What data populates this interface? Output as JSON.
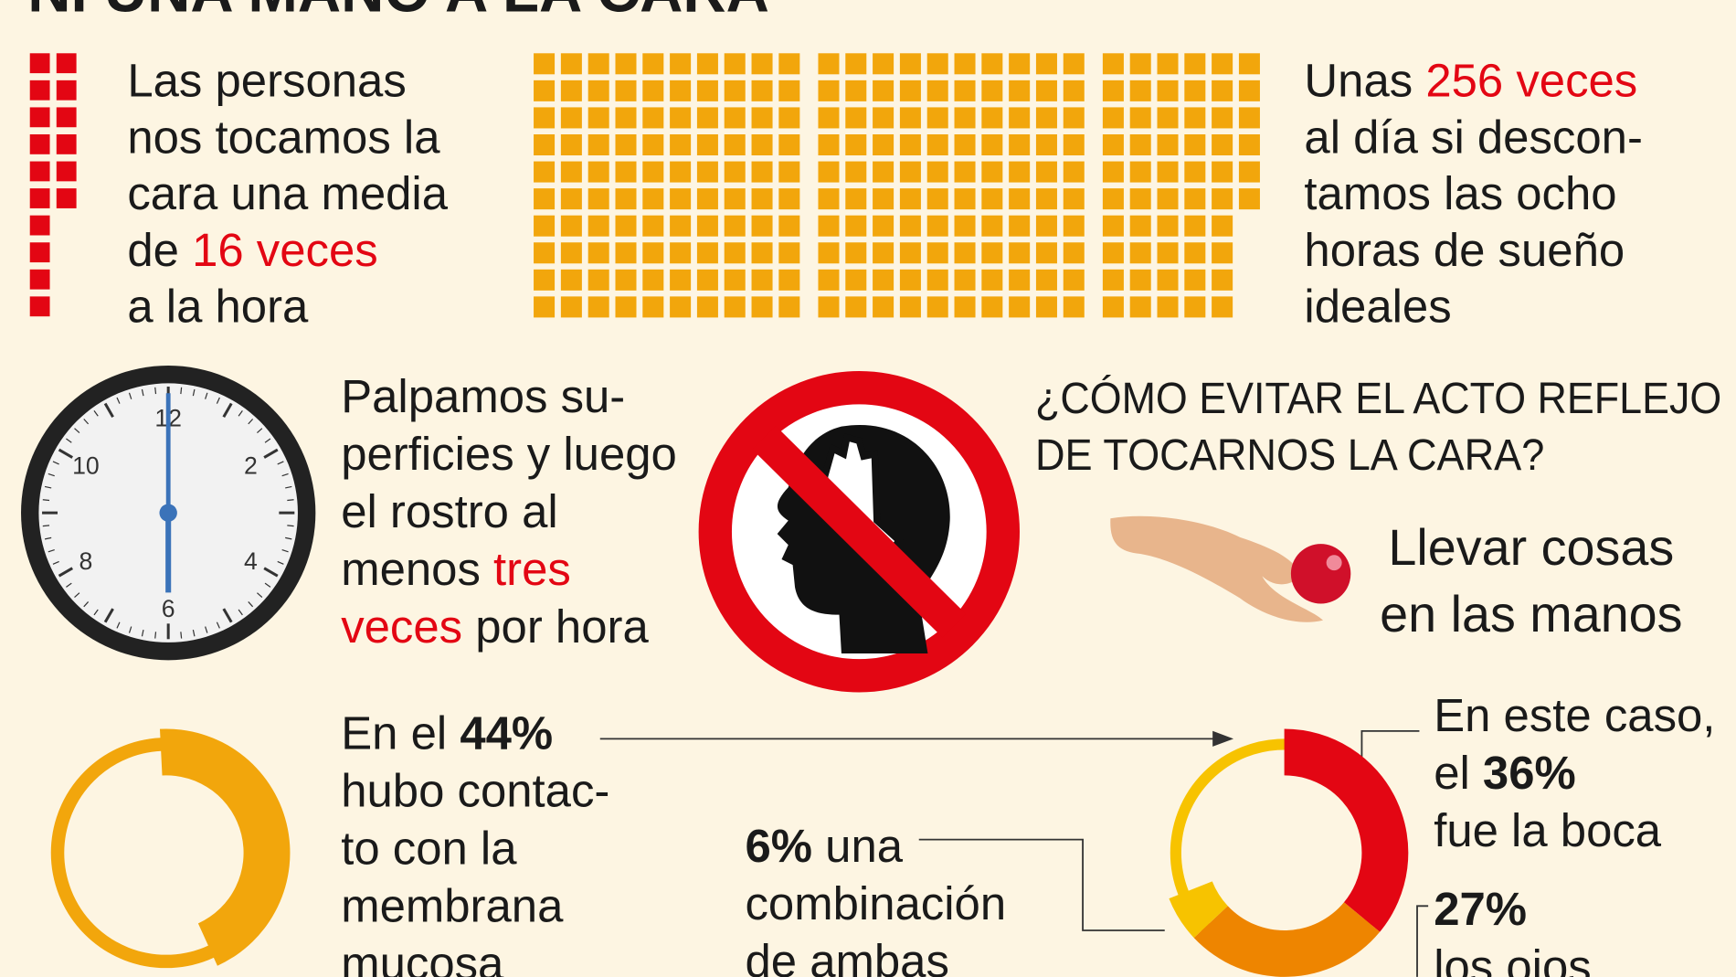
{
  "header": {
    "title": "NI UNA MANO A LA CARA"
  },
  "per_hour": {
    "count": 16,
    "color": "#e30613",
    "lines": [
      [
        "Las personas"
      ],
      [
        "nos tocamos la"
      ],
      [
        "cara una media"
      ],
      [
        "de ",
        {
          "text": "16 veces",
          "color": "#e30613"
        }
      ],
      [
        "a la hora"
      ]
    ]
  },
  "per_day": {
    "count": 256,
    "color": "#f2a60c",
    "lines": [
      [
        "Unas ",
        {
          "text": "256 veces",
          "color": "#e30613"
        }
      ],
      [
        "al día si descon-"
      ],
      [
        "tamos las ocho"
      ],
      [
        "horas de sueño"
      ],
      [
        "ideales"
      ]
    ]
  },
  "clock": {
    "numbers": [
      12,
      2,
      4,
      6,
      8,
      10
    ]
  },
  "surfaces": {
    "lines": [
      [
        "Palpamos su-"
      ],
      [
        "perficies y luego"
      ],
      [
        "el rostro al"
      ],
      [
        "menos ",
        {
          "text": "tres",
          "color": "#e30613"
        }
      ],
      [
        {
          "text": "veces",
          "color": "#e30613"
        },
        " por hora"
      ]
    ]
  },
  "avoid": {
    "question": [
      "¿CÓMO EVITAR EL ACTO REFLEJO",
      "DE TOCARNOS LA CARA?"
    ],
    "tip": [
      "Llevar cosas",
      "en las manos"
    ]
  },
  "mucosa": {
    "value": 44,
    "color": "#f2a60c",
    "lines": [
      [
        "En el ",
        {
          "text": "44%",
          "bold": true
        }
      ],
      [
        "hubo contac-"
      ],
      [
        "to con la"
      ],
      [
        "membrana"
      ],
      [
        "mucosa"
      ]
    ]
  },
  "breakdown": {
    "mouth": {
      "value": 36,
      "color": "#e30613",
      "lines": [
        [
          "En este caso,"
        ],
        [
          "el ",
          {
            "text": "36%",
            "bold": true
          }
        ],
        [
          "fue la boca"
        ]
      ]
    },
    "eyes": {
      "value": 27,
      "color": "#ee8500",
      "lines": [
        [
          {
            "text": "27%",
            "bold": true
          }
        ],
        [
          "los ojos"
        ]
      ]
    },
    "both": {
      "value": 6,
      "color": "#f7c300",
      "lines": [
        [
          {
            "text": "6%",
            "bold": true
          },
          " una"
        ],
        [
          "combinación"
        ],
        [
          "de ambas"
        ]
      ]
    }
  }
}
